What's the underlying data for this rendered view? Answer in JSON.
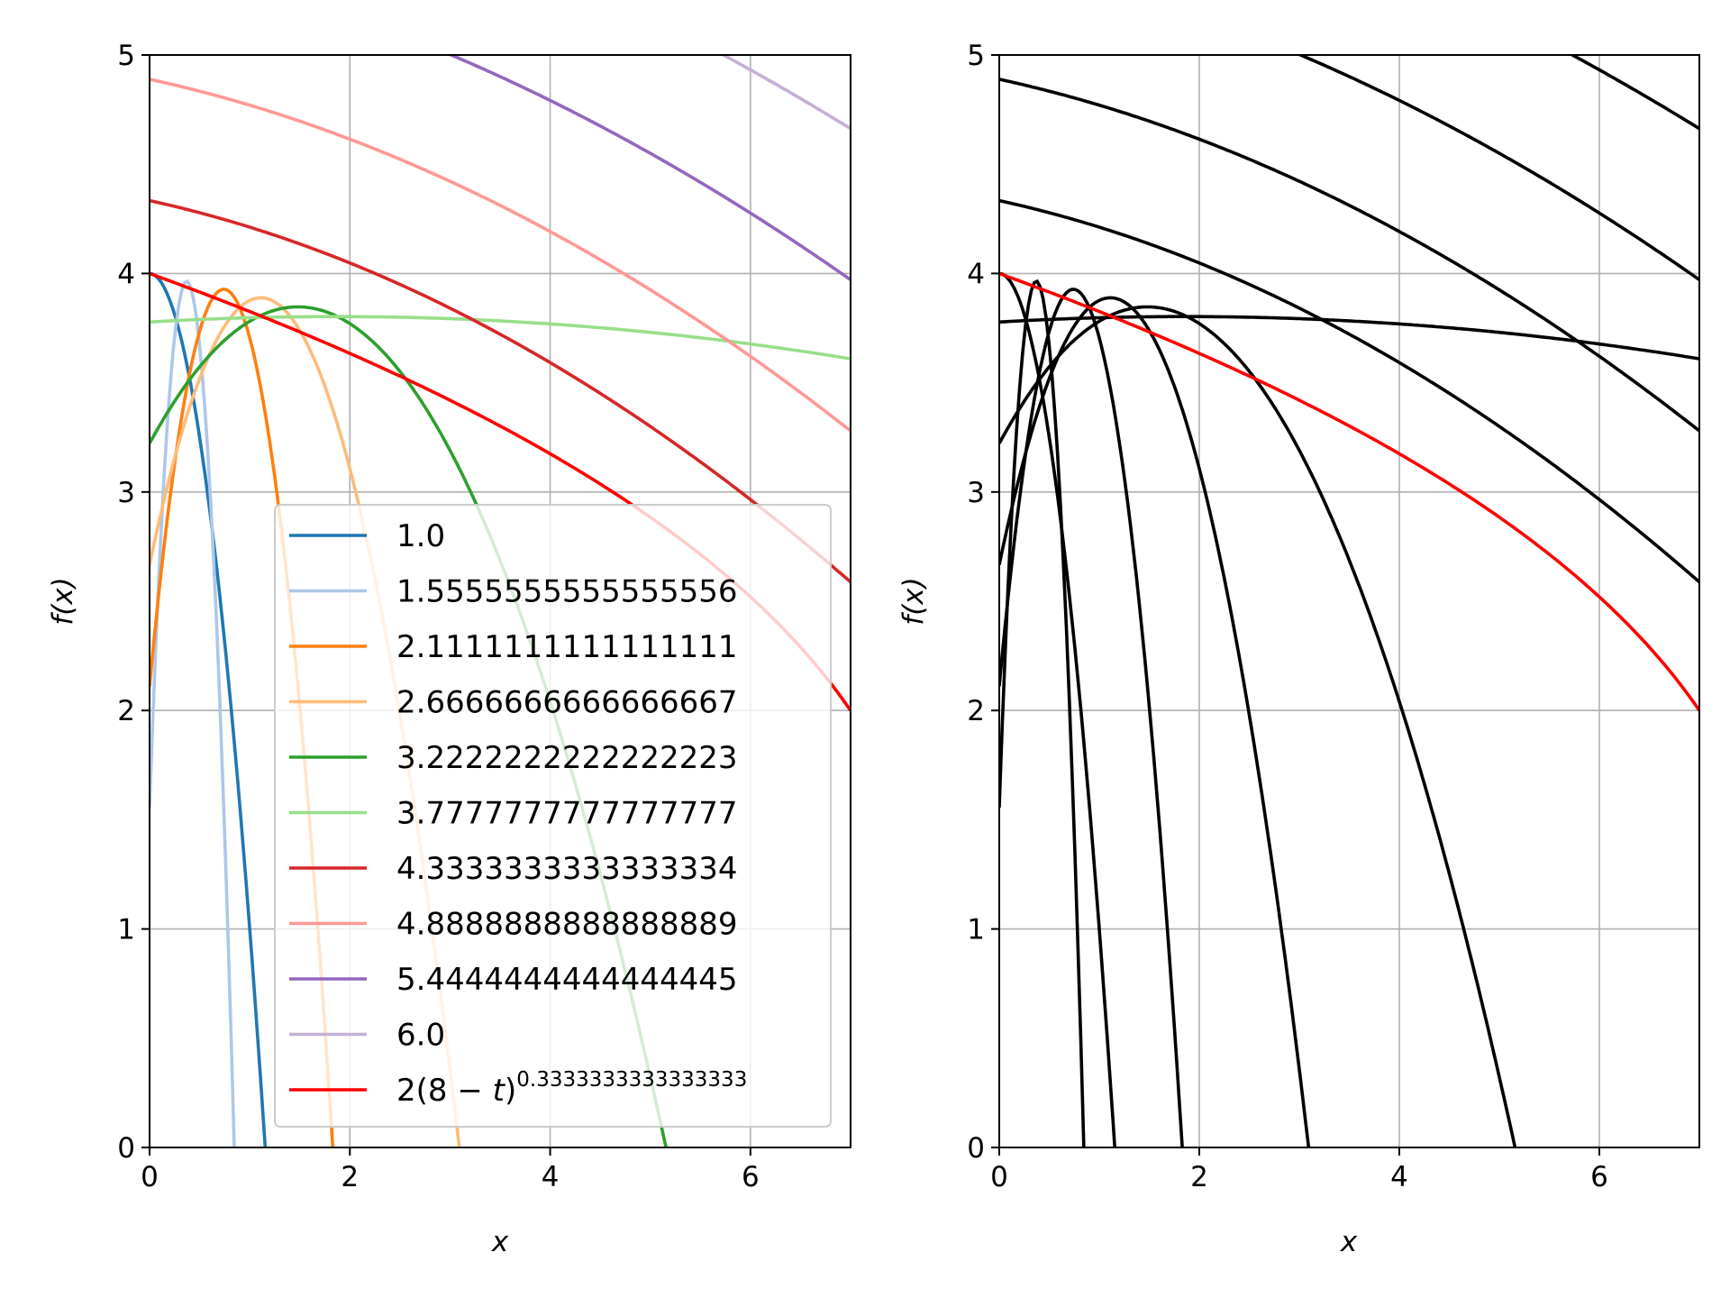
{
  "chart_data": [
    {
      "type": "line",
      "panel": "left",
      "title": "",
      "xlabel": "x",
      "ylabel": "f(x)",
      "xlim": [
        0,
        7
      ],
      "ylim": [
        0,
        5
      ],
      "xticks": [
        "0",
        "2",
        "4",
        "6"
      ],
      "yticks": [
        "0",
        "1",
        "2",
        "3",
        "4",
        "5"
      ],
      "grid": true,
      "legend_position": "lower-right",
      "series": [
        {
          "name": "1.0",
          "t": 1.0,
          "color": "#1f77b4"
        },
        {
          "name": "1.5555555555555556",
          "t": 1.5555555555555556,
          "color": "#aec7e8"
        },
        {
          "name": "2.1111111111111111",
          "t": 2.111111111111111,
          "color": "#ff7f0e"
        },
        {
          "name": "2.6666666666666667",
          "t": 2.6666666666666665,
          "color": "#ffbb78"
        },
        {
          "name": "3.2222222222222223",
          "t": 3.2222222222222223,
          "color": "#2ca02c"
        },
        {
          "name": "3.7777777777777777",
          "t": 3.7777777777777777,
          "color": "#98df8a"
        },
        {
          "name": "4.3333333333333334",
          "t": 4.333333333333333,
          "color": "#d62728"
        },
        {
          "name": "4.8888888888888889",
          "t": 4.888888888888889,
          "color": "#ff9896"
        },
        {
          "name": "5.4444444444444445",
          "t": 5.444444444444445,
          "color": "#9467bd"
        },
        {
          "name": "6.0",
          "t": 6.0,
          "color": "#c5b0d5"
        }
      ],
      "envelope": {
        "name_prefix": "2(8 − ",
        "name_var": "t",
        "name_suffix": ")",
        "exponent": "0.3333333333333333",
        "color": "#ff0000",
        "x": [
          0,
          1,
          2,
          3,
          4,
          5,
          6,
          7
        ],
        "y": [
          4.0,
          3.826,
          3.634,
          3.42,
          3.175,
          2.884,
          2.52,
          2.0
        ]
      }
    },
    {
      "type": "line",
      "panel": "right",
      "title": "",
      "xlabel": "x",
      "ylabel": "f(x)",
      "xlim": [
        0,
        7
      ],
      "ylim": [
        0,
        5
      ],
      "xticks": [
        "0",
        "2",
        "4",
        "6"
      ],
      "yticks": [
        "0",
        "1",
        "2",
        "3",
        "4",
        "5"
      ],
      "grid": true,
      "series_color": "#000000",
      "t_values": [
        1.0,
        1.5555555555555556,
        2.111111111111111,
        2.6666666666666665,
        3.2222222222222223,
        3.7777777777777777,
        4.333333333333333,
        4.888888888888889,
        5.444444444444445,
        6.0
      ],
      "envelope": {
        "color": "#ff0000",
        "x": [
          0,
          1,
          2,
          3,
          4,
          5,
          6,
          7
        ],
        "y": [
          4.0,
          3.826,
          3.634,
          3.42,
          3.175,
          2.884,
          2.52,
          2.0
        ]
      }
    }
  ]
}
